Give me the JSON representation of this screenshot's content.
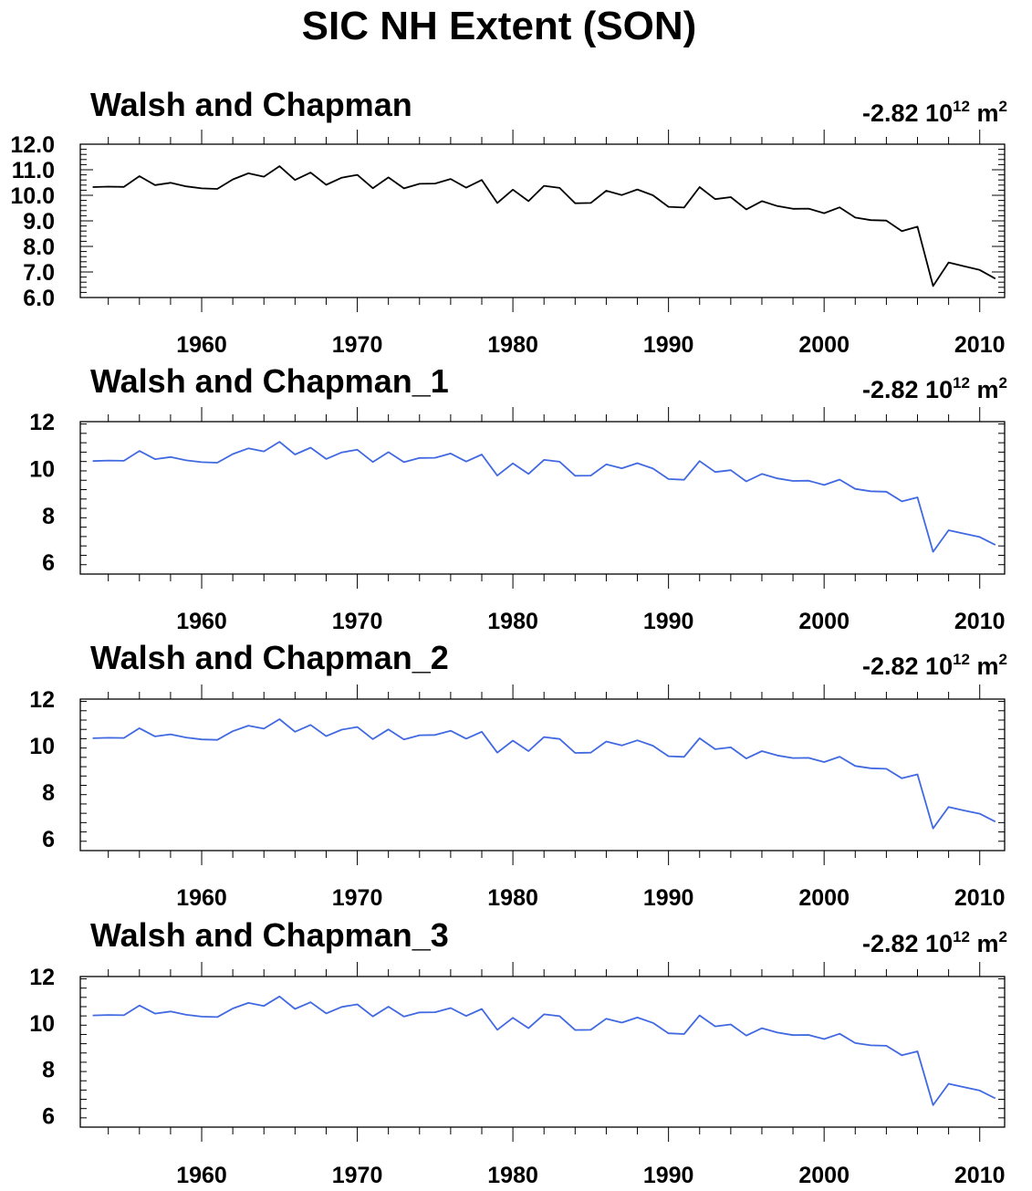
{
  "page": {
    "title": "SIC NH Extent (SON)"
  },
  "chart_data": [
    {
      "type": "line",
      "title": "Walsh and Chapman",
      "annotation": {
        "value": "-2.82",
        "base": "10",
        "exponent": "12",
        "unit": "m",
        "unit_exponent": "2"
      },
      "color": "#000000",
      "xlim": [
        1952.2,
        2011.6
      ],
      "ylim": [
        6.0,
        12.0
      ],
      "yticks": [
        6.0,
        7.0,
        8.0,
        9.0,
        10.0,
        11.0,
        12.0
      ],
      "ytick_labels": [
        "6.0",
        "7.0",
        "8.0",
        "9.0",
        "10.0",
        "11.0",
        "12.0"
      ],
      "xticks": [
        1960,
        1970,
        1980,
        1990,
        2000,
        2010
      ],
      "xtick_labels": [
        "1960",
        "1970",
        "1980",
        "1990",
        "2000",
        "2010"
      ],
      "x": [
        1953,
        1954,
        1955,
        1956,
        1957,
        1958,
        1959,
        1960,
        1961,
        1962,
        1963,
        1964,
        1965,
        1966,
        1967,
        1968,
        1969,
        1970,
        1971,
        1972,
        1973,
        1974,
        1975,
        1976,
        1977,
        1978,
        1979,
        1980,
        1981,
        1982,
        1983,
        1984,
        1985,
        1986,
        1987,
        1988,
        1989,
        1990,
        1991,
        1992,
        1993,
        1994,
        1995,
        1996,
        1997,
        1998,
        1999,
        2000,
        2001,
        2002,
        2003,
        2004,
        2005,
        2006,
        2007,
        2008,
        2009,
        2010,
        2011
      ],
      "y": [
        10.32,
        10.34,
        10.33,
        10.75,
        10.4,
        10.49,
        10.35,
        10.27,
        10.25,
        10.62,
        10.86,
        10.73,
        11.14,
        10.6,
        10.89,
        10.41,
        10.69,
        10.8,
        10.28,
        10.7,
        10.27,
        10.45,
        10.46,
        10.64,
        10.3,
        10.6,
        9.7,
        10.22,
        9.77,
        10.37,
        10.29,
        9.69,
        9.7,
        10.18,
        10.01,
        10.23,
        10.0,
        9.55,
        9.52,
        10.32,
        9.85,
        9.93,
        9.45,
        9.77,
        9.58,
        9.47,
        9.48,
        9.3,
        9.53,
        9.13,
        9.03,
        9.01,
        8.6,
        8.77,
        6.45,
        7.37,
        7.22,
        7.08,
        6.74
      ]
    },
    {
      "type": "line",
      "title": "Walsh and Chapman_1",
      "annotation": {
        "value": "-2.82",
        "base": "10",
        "exponent": "12",
        "unit": "m",
        "unit_exponent": "2"
      },
      "color": "#4169e1",
      "xlim": [
        1952.2,
        2011.6
      ],
      "ylim": [
        5.5,
        12.0
      ],
      "yticks": [
        6,
        8,
        10,
        12
      ],
      "ytick_labels": [
        "6",
        "8",
        "10",
        "12"
      ],
      "xticks": [
        1960,
        1970,
        1980,
        1990,
        2000,
        2010
      ],
      "xtick_labels": [
        "1960",
        "1970",
        "1980",
        "1990",
        "2000",
        "2010"
      ],
      "x": [
        1953,
        1954,
        1955,
        1956,
        1957,
        1958,
        1959,
        1960,
        1961,
        1962,
        1963,
        1964,
        1965,
        1966,
        1967,
        1968,
        1969,
        1970,
        1971,
        1972,
        1973,
        1974,
        1975,
        1976,
        1977,
        1978,
        1979,
        1980,
        1981,
        1982,
        1983,
        1984,
        1985,
        1986,
        1987,
        1988,
        1989,
        1990,
        1991,
        1992,
        1993,
        1994,
        1995,
        1996,
        1997,
        1998,
        1999,
        2000,
        2001,
        2002,
        2003,
        2004,
        2005,
        2006,
        2007,
        2008,
        2009,
        2010,
        2011
      ],
      "y": [
        10.32,
        10.34,
        10.33,
        10.75,
        10.4,
        10.49,
        10.35,
        10.27,
        10.25,
        10.62,
        10.86,
        10.73,
        11.14,
        10.6,
        10.89,
        10.41,
        10.69,
        10.8,
        10.28,
        10.7,
        10.27,
        10.45,
        10.46,
        10.64,
        10.3,
        10.6,
        9.7,
        10.22,
        9.77,
        10.37,
        10.29,
        9.69,
        9.7,
        10.18,
        10.01,
        10.23,
        10.0,
        9.55,
        9.52,
        10.32,
        9.85,
        9.93,
        9.45,
        9.77,
        9.58,
        9.47,
        9.48,
        9.3,
        9.53,
        9.13,
        9.03,
        9.01,
        8.6,
        8.77,
        6.45,
        7.37,
        7.22,
        7.08,
        6.74
      ]
    },
    {
      "type": "line",
      "title": "Walsh and Chapman_2",
      "annotation": {
        "value": "-2.82",
        "base": "10",
        "exponent": "12",
        "unit": "m",
        "unit_exponent": "2"
      },
      "color": "#4169e1",
      "xlim": [
        1952.2,
        2011.6
      ],
      "ylim": [
        5.5,
        12.0
      ],
      "yticks": [
        6,
        8,
        10,
        12
      ],
      "ytick_labels": [
        "6",
        "8",
        "10",
        "12"
      ],
      "xticks": [
        1960,
        1970,
        1980,
        1990,
        2000,
        2010
      ],
      "xtick_labels": [
        "1960",
        "1970",
        "1980",
        "1990",
        "2000",
        "2010"
      ],
      "x": [
        1953,
        1954,
        1955,
        1956,
        1957,
        1958,
        1959,
        1960,
        1961,
        1962,
        1963,
        1964,
        1965,
        1966,
        1967,
        1968,
        1969,
        1970,
        1971,
        1972,
        1973,
        1974,
        1975,
        1976,
        1977,
        1978,
        1979,
        1980,
        1981,
        1982,
        1983,
        1984,
        1985,
        1986,
        1987,
        1988,
        1989,
        1990,
        1991,
        1992,
        1993,
        1994,
        1995,
        1996,
        1997,
        1998,
        1999,
        2000,
        2001,
        2002,
        2003,
        2004,
        2005,
        2006,
        2007,
        2008,
        2009,
        2010,
        2011
      ],
      "y": [
        10.32,
        10.34,
        10.33,
        10.75,
        10.4,
        10.49,
        10.35,
        10.27,
        10.25,
        10.62,
        10.86,
        10.73,
        11.14,
        10.6,
        10.89,
        10.41,
        10.69,
        10.8,
        10.28,
        10.7,
        10.27,
        10.45,
        10.46,
        10.64,
        10.3,
        10.6,
        9.7,
        10.22,
        9.77,
        10.37,
        10.29,
        9.69,
        9.7,
        10.18,
        10.01,
        10.23,
        10.0,
        9.55,
        9.52,
        10.32,
        9.85,
        9.93,
        9.45,
        9.77,
        9.58,
        9.47,
        9.48,
        9.3,
        9.53,
        9.13,
        9.03,
        9.01,
        8.6,
        8.77,
        6.45,
        7.37,
        7.22,
        7.08,
        6.74
      ]
    },
    {
      "type": "line",
      "title": "Walsh and Chapman_3",
      "annotation": {
        "value": "-2.82",
        "base": "10",
        "exponent": "12",
        "unit": "m",
        "unit_exponent": "2"
      },
      "color": "#4169e1",
      "xlim": [
        1952.2,
        2011.6
      ],
      "ylim": [
        5.5,
        12.0
      ],
      "yticks": [
        6,
        8,
        10,
        12
      ],
      "ytick_labels": [
        "6",
        "8",
        "10",
        "12"
      ],
      "xticks": [
        1960,
        1970,
        1980,
        1990,
        2000,
        2010
      ],
      "xtick_labels": [
        "1960",
        "1970",
        "1980",
        "1990",
        "2000",
        "2010"
      ],
      "x": [
        1953,
        1954,
        1955,
        1956,
        1957,
        1958,
        1959,
        1960,
        1961,
        1962,
        1963,
        1964,
        1965,
        1966,
        1967,
        1968,
        1969,
        1970,
        1971,
        1972,
        1973,
        1974,
        1975,
        1976,
        1977,
        1978,
        1979,
        1980,
        1981,
        1982,
        1983,
        1984,
        1985,
        1986,
        1987,
        1988,
        1989,
        1990,
        1991,
        1992,
        1993,
        1994,
        1995,
        1996,
        1997,
        1998,
        1999,
        2000,
        2001,
        2002,
        2003,
        2004,
        2005,
        2006,
        2007,
        2008,
        2009,
        2010,
        2011
      ],
      "y": [
        10.32,
        10.34,
        10.33,
        10.75,
        10.4,
        10.49,
        10.35,
        10.27,
        10.25,
        10.62,
        10.86,
        10.73,
        11.14,
        10.6,
        10.89,
        10.41,
        10.69,
        10.8,
        10.28,
        10.7,
        10.27,
        10.45,
        10.46,
        10.64,
        10.3,
        10.6,
        9.7,
        10.22,
        9.77,
        10.37,
        10.29,
        9.69,
        9.7,
        10.18,
        10.01,
        10.23,
        10.0,
        9.55,
        9.52,
        10.32,
        9.85,
        9.93,
        9.45,
        9.77,
        9.58,
        9.47,
        9.48,
        9.3,
        9.53,
        9.13,
        9.03,
        9.01,
        8.6,
        8.77,
        6.45,
        7.37,
        7.22,
        7.08,
        6.74
      ]
    }
  ]
}
